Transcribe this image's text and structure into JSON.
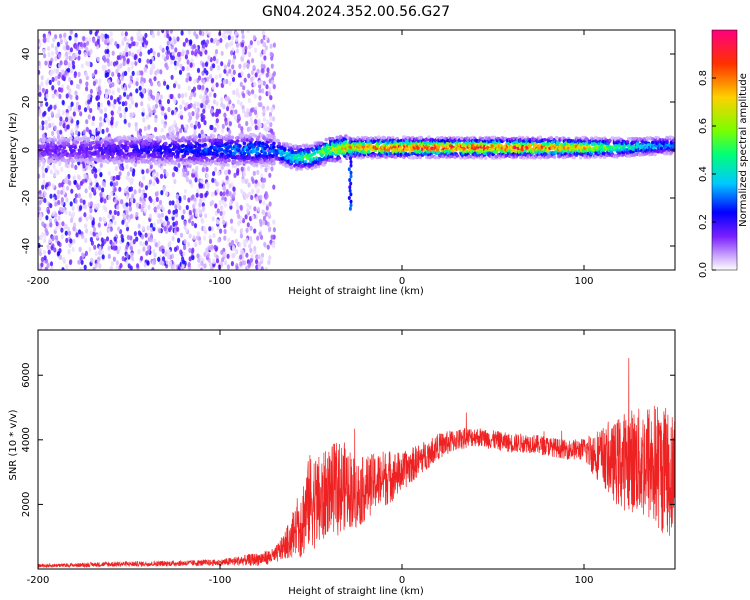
{
  "figure": {
    "title": "GN04.2024.352.00.56.G27"
  },
  "chart_data": [
    {
      "type": "heatmap",
      "xlabel": "Height of straight line (km)",
      "ylabel": "Frequency (Hz)",
      "xlim": [
        -200,
        150
      ],
      "ylim": [
        -50,
        50
      ],
      "xticks": [
        -200,
        -100,
        0,
        100
      ],
      "yticks": [
        -40,
        -20,
        0,
        20,
        40
      ],
      "colorbar": {
        "label": "Normalized spectral amplitude",
        "range": [
          0,
          1
        ],
        "ticks": [
          "0.0",
          "0.2",
          "0.4",
          "0.6",
          "0.8"
        ],
        "colormap": [
          "#ffffff",
          "#c9a4ff",
          "#7a1fff",
          "#0000ff",
          "#00c8ff",
          "#00ff7a",
          "#7aff00",
          "#ffd000",
          "#ff3000",
          "#ff0080"
        ]
      },
      "noise_region": {
        "x_range": [
          -200,
          -70
        ],
        "freq_range": [
          -50,
          50
        ]
      },
      "signal_band": {
        "x": [
          -200,
          -150,
          -100,
          -80,
          -70,
          -60,
          -50,
          -40,
          -30,
          -20,
          0,
          20,
          50,
          80,
          100,
          120,
          150
        ],
        "center_freq": [
          0,
          0,
          0,
          0,
          0,
          -3,
          -3,
          0,
          1,
          1,
          1,
          1,
          1,
          1,
          1,
          1,
          2
        ],
        "amplitude": [
          0.15,
          0.2,
          0.3,
          0.35,
          0.3,
          0.45,
          0.55,
          0.6,
          0.75,
          0.85,
          0.9,
          0.9,
          0.9,
          0.85,
          0.75,
          0.5,
          0.3
        ]
      }
    },
    {
      "type": "line",
      "xlabel": "Height of straight line (km)",
      "ylabel": "SNR (10 * v/v)",
      "xlim": [
        -200,
        150
      ],
      "ylim": [
        0,
        7400
      ],
      "xticks": [
        -200,
        -100,
        0,
        100
      ],
      "yticks": [
        2000,
        4000,
        6000
      ],
      "color": "#ee2222",
      "series": [
        {
          "x": [
            -200,
            -180,
            -160,
            -140,
            -120,
            -100,
            -80,
            -70,
            -65,
            -60,
            -55,
            -50,
            -45,
            -40,
            -35,
            -30,
            -25,
            -20,
            -15,
            -10,
            -5,
            0,
            10,
            20,
            30,
            40,
            50,
            60,
            70,
            80,
            90,
            100,
            105,
            110,
            115,
            120,
            125,
            130,
            135,
            140,
            145,
            150
          ],
          "y": [
            100,
            120,
            150,
            160,
            180,
            200,
            300,
            400,
            700,
            1000,
            1500,
            2200,
            2000,
            2500,
            2500,
            2600,
            2300,
            2500,
            2700,
            2800,
            2900,
            3000,
            3400,
            3800,
            4000,
            4100,
            4000,
            3900,
            3900,
            3800,
            3700,
            3700,
            3600,
            3500,
            3300,
            3300,
            3400,
            3300,
            3300,
            3200,
            3000,
            2900
          ],
          "spread": [
            60,
            60,
            80,
            80,
            90,
            100,
            200,
            250,
            400,
            700,
            1200,
            1500,
            1500,
            1300,
            1500,
            1300,
            1100,
            1000,
            900,
            900,
            800,
            600,
            500,
            400,
            350,
            300,
            300,
            300,
            300,
            300,
            300,
            350,
            700,
            900,
            1100,
            1500,
            1600,
            1700,
            1900,
            2000,
            2000,
            2100
          ]
        }
      ]
    }
  ]
}
